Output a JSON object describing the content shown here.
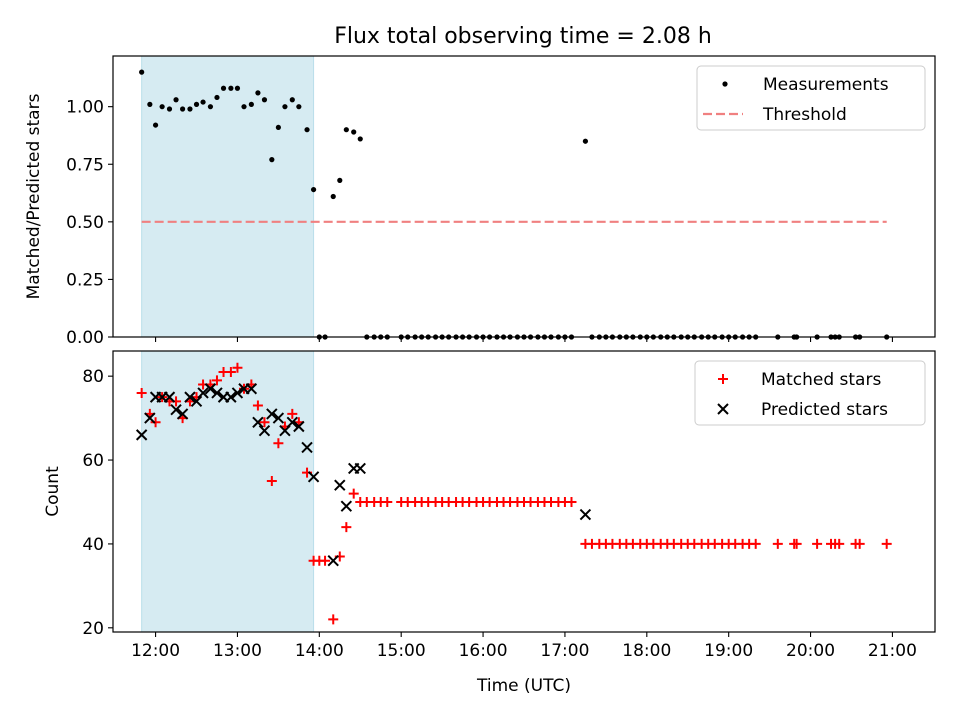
{
  "figure": {
    "title": "Flux total observing time = 2.08 h"
  },
  "chart_data": [
    {
      "type": "scatter",
      "ylabel": "Matched/Predicted stars",
      "xlabel": "",
      "xlim": [
        11.48,
        21.52
      ],
      "ylim": [
        0.0,
        1.22
      ],
      "yticks": [
        0.0,
        0.25,
        0.5,
        0.75,
        1.0
      ],
      "ytick_labels": [
        "0.00",
        "0.25",
        "0.50",
        "0.75",
        "1.00"
      ],
      "shaded_span": {
        "x0": 11.83,
        "x1": 13.93,
        "color": "#add8e6"
      },
      "legend": {
        "location": "top-right",
        "entries": [
          "Measurements",
          "Threshold"
        ]
      },
      "threshold": {
        "name": "Threshold",
        "y": 0.5,
        "x": [
          11.83,
          20.93
        ],
        "color": "#f08080"
      },
      "series": [
        {
          "name": "Measurements",
          "marker": "dot",
          "color": "#000000",
          "points": [
            [
              11.83,
              1.15
            ],
            [
              11.93,
              1.01
            ],
            [
              12.0,
              0.92
            ],
            [
              12.08,
              1.0
            ],
            [
              12.17,
              0.99
            ],
            [
              12.25,
              1.03
            ],
            [
              12.33,
              0.99
            ],
            [
              12.42,
              0.99
            ],
            [
              12.5,
              1.01
            ],
            [
              12.58,
              1.02
            ],
            [
              12.67,
              1.0
            ],
            [
              12.75,
              1.04
            ],
            [
              12.83,
              1.08
            ],
            [
              12.92,
              1.08
            ],
            [
              13.0,
              1.08
            ],
            [
              13.08,
              1.0
            ],
            [
              13.17,
              1.01
            ],
            [
              13.25,
              1.06
            ],
            [
              13.33,
              1.03
            ],
            [
              13.42,
              0.77
            ],
            [
              13.5,
              0.91
            ],
            [
              13.58,
              1.0
            ],
            [
              13.67,
              1.03
            ],
            [
              13.75,
              1.0
            ],
            [
              13.85,
              0.9
            ],
            [
              13.93,
              0.64
            ],
            [
              14.0,
              0.0
            ],
            [
              14.07,
              0.0
            ],
            [
              14.17,
              0.61
            ],
            [
              14.25,
              0.68
            ],
            [
              14.33,
              0.9
            ],
            [
              14.42,
              0.89
            ],
            [
              14.5,
              0.86
            ],
            [
              14.58,
              0.0
            ],
            [
              14.67,
              0.0
            ],
            [
              14.75,
              0.0
            ],
            [
              14.83,
              0.0
            ],
            [
              15.0,
              0.0
            ],
            [
              15.08,
              0.0
            ],
            [
              15.17,
              0.0
            ],
            [
              15.25,
              0.0
            ],
            [
              15.33,
              0.0
            ],
            [
              15.42,
              0.0
            ],
            [
              15.5,
              0.0
            ],
            [
              15.58,
              0.0
            ],
            [
              15.67,
              0.0
            ],
            [
              15.75,
              0.0
            ],
            [
              15.83,
              0.0
            ],
            [
              15.92,
              0.0
            ],
            [
              16.0,
              0.0
            ],
            [
              16.08,
              0.0
            ],
            [
              16.17,
              0.0
            ],
            [
              16.25,
              0.0
            ],
            [
              16.33,
              0.0
            ],
            [
              16.42,
              0.0
            ],
            [
              16.5,
              0.0
            ],
            [
              16.58,
              0.0
            ],
            [
              16.67,
              0.0
            ],
            [
              16.75,
              0.0
            ],
            [
              16.83,
              0.0
            ],
            [
              16.92,
              0.0
            ],
            [
              17.0,
              0.0
            ],
            [
              17.08,
              0.0
            ],
            [
              17.25,
              0.85
            ],
            [
              17.33,
              0.0
            ],
            [
              17.42,
              0.0
            ],
            [
              17.5,
              0.0
            ],
            [
              17.58,
              0.0
            ],
            [
              17.67,
              0.0
            ],
            [
              17.75,
              0.0
            ],
            [
              17.83,
              0.0
            ],
            [
              17.92,
              0.0
            ],
            [
              18.0,
              0.0
            ],
            [
              18.08,
              0.0
            ],
            [
              18.17,
              0.0
            ],
            [
              18.25,
              0.0
            ],
            [
              18.33,
              0.0
            ],
            [
              18.42,
              0.0
            ],
            [
              18.5,
              0.0
            ],
            [
              18.58,
              0.0
            ],
            [
              18.67,
              0.0
            ],
            [
              18.75,
              0.0
            ],
            [
              18.83,
              0.0
            ],
            [
              18.92,
              0.0
            ],
            [
              19.0,
              0.0
            ],
            [
              19.08,
              0.0
            ],
            [
              19.17,
              0.0
            ],
            [
              19.25,
              0.0
            ],
            [
              19.33,
              0.0
            ],
            [
              19.6,
              0.0
            ],
            [
              19.8,
              0.0
            ],
            [
              19.83,
              0.0
            ],
            [
              20.08,
              0.0
            ],
            [
              20.25,
              0.0
            ],
            [
              20.3,
              0.0
            ],
            [
              20.35,
              0.0
            ],
            [
              20.55,
              0.0
            ],
            [
              20.6,
              0.0
            ],
            [
              20.93,
              0.0
            ]
          ]
        }
      ]
    },
    {
      "type": "scatter",
      "ylabel": "Count",
      "xlabel": "Time (UTC)",
      "xlim": [
        11.48,
        21.52
      ],
      "ylim": [
        19.0,
        86.0
      ],
      "yticks": [
        20,
        40,
        60,
        80
      ],
      "ytick_labels": [
        "20",
        "40",
        "60",
        "80"
      ],
      "xticks": [
        12,
        13,
        14,
        15,
        16,
        17,
        18,
        19,
        20,
        21
      ],
      "xtick_labels": [
        "12:00",
        "13:00",
        "14:00",
        "15:00",
        "16:00",
        "17:00",
        "18:00",
        "19:00",
        "20:00",
        "21:00"
      ],
      "shaded_span": {
        "x0": 11.83,
        "x1": 13.93,
        "color": "#add8e6"
      },
      "legend": {
        "location": "top-right",
        "entries": [
          "Matched stars",
          "Predicted stars"
        ]
      },
      "series": [
        {
          "name": "Matched stars",
          "marker": "plus",
          "color": "#ff0000",
          "points": [
            [
              11.83,
              76
            ],
            [
              11.93,
              71
            ],
            [
              12.0,
              69
            ],
            [
              12.08,
              75
            ],
            [
              12.17,
              74
            ],
            [
              12.25,
              74
            ],
            [
              12.33,
              70
            ],
            [
              12.42,
              74
            ],
            [
              12.5,
              75
            ],
            [
              12.58,
              78
            ],
            [
              12.67,
              78
            ],
            [
              12.75,
              79
            ],
            [
              12.83,
              81
            ],
            [
              12.92,
              81
            ],
            [
              13.0,
              82
            ],
            [
              13.08,
              77
            ],
            [
              13.17,
              78
            ],
            [
              13.25,
              73
            ],
            [
              13.33,
              69
            ],
            [
              13.42,
              55
            ],
            [
              13.5,
              64
            ],
            [
              13.58,
              68
            ],
            [
              13.67,
              71
            ],
            [
              13.75,
              69
            ],
            [
              13.85,
              57
            ],
            [
              13.93,
              36
            ],
            [
              14.0,
              36
            ],
            [
              14.07,
              36
            ],
            [
              14.17,
              22
            ],
            [
              14.25,
              37
            ],
            [
              14.33,
              44
            ],
            [
              14.42,
              52
            ],
            [
              14.5,
              50
            ],
            [
              14.58,
              50
            ],
            [
              14.67,
              50
            ],
            [
              14.75,
              50
            ],
            [
              14.83,
              50
            ],
            [
              15.0,
              50
            ],
            [
              15.08,
              50
            ],
            [
              15.17,
              50
            ],
            [
              15.25,
              50
            ],
            [
              15.33,
              50
            ],
            [
              15.42,
              50
            ],
            [
              15.5,
              50
            ],
            [
              15.58,
              50
            ],
            [
              15.67,
              50
            ],
            [
              15.75,
              50
            ],
            [
              15.83,
              50
            ],
            [
              15.92,
              50
            ],
            [
              16.0,
              50
            ],
            [
              16.08,
              50
            ],
            [
              16.17,
              50
            ],
            [
              16.25,
              50
            ],
            [
              16.33,
              50
            ],
            [
              16.42,
              50
            ],
            [
              16.5,
              50
            ],
            [
              16.58,
              50
            ],
            [
              16.67,
              50
            ],
            [
              16.75,
              50
            ],
            [
              16.83,
              50
            ],
            [
              16.92,
              50
            ],
            [
              17.0,
              50
            ],
            [
              17.08,
              50
            ],
            [
              17.25,
              40
            ],
            [
              17.33,
              40
            ],
            [
              17.42,
              40
            ],
            [
              17.5,
              40
            ],
            [
              17.58,
              40
            ],
            [
              17.67,
              40
            ],
            [
              17.75,
              40
            ],
            [
              17.83,
              40
            ],
            [
              17.92,
              40
            ],
            [
              18.0,
              40
            ],
            [
              18.08,
              40
            ],
            [
              18.17,
              40
            ],
            [
              18.25,
              40
            ],
            [
              18.33,
              40
            ],
            [
              18.42,
              40
            ],
            [
              18.5,
              40
            ],
            [
              18.58,
              40
            ],
            [
              18.67,
              40
            ],
            [
              18.75,
              40
            ],
            [
              18.83,
              40
            ],
            [
              18.92,
              40
            ],
            [
              19.0,
              40
            ],
            [
              19.08,
              40
            ],
            [
              19.17,
              40
            ],
            [
              19.25,
              40
            ],
            [
              19.33,
              40
            ],
            [
              19.6,
              40
            ],
            [
              19.8,
              40
            ],
            [
              19.83,
              40
            ],
            [
              20.08,
              40
            ],
            [
              20.25,
              40
            ],
            [
              20.3,
              40
            ],
            [
              20.35,
              40
            ],
            [
              20.55,
              40
            ],
            [
              20.6,
              40
            ],
            [
              20.93,
              40
            ]
          ]
        },
        {
          "name": "Predicted stars",
          "marker": "cross",
          "color": "#000000",
          "points": [
            [
              11.83,
              66
            ],
            [
              11.93,
              70
            ],
            [
              12.0,
              75
            ],
            [
              12.08,
              75
            ],
            [
              12.17,
              75
            ],
            [
              12.25,
              72
            ],
            [
              12.33,
              71
            ],
            [
              12.42,
              75
            ],
            [
              12.5,
              74
            ],
            [
              12.58,
              76
            ],
            [
              12.67,
              77
            ],
            [
              12.75,
              76
            ],
            [
              12.83,
              75
            ],
            [
              12.92,
              75
            ],
            [
              13.0,
              76
            ],
            [
              13.08,
              77
            ],
            [
              13.17,
              77
            ],
            [
              13.25,
              69
            ],
            [
              13.33,
              67
            ],
            [
              13.42,
              71
            ],
            [
              13.5,
              70
            ],
            [
              13.58,
              67
            ],
            [
              13.67,
              69
            ],
            [
              13.75,
              68
            ],
            [
              13.85,
              63
            ],
            [
              13.93,
              56
            ],
            [
              14.17,
              36
            ],
            [
              14.25,
              54
            ],
            [
              14.33,
              49
            ],
            [
              14.42,
              58
            ],
            [
              14.5,
              58
            ],
            [
              17.25,
              47
            ]
          ]
        }
      ]
    }
  ]
}
